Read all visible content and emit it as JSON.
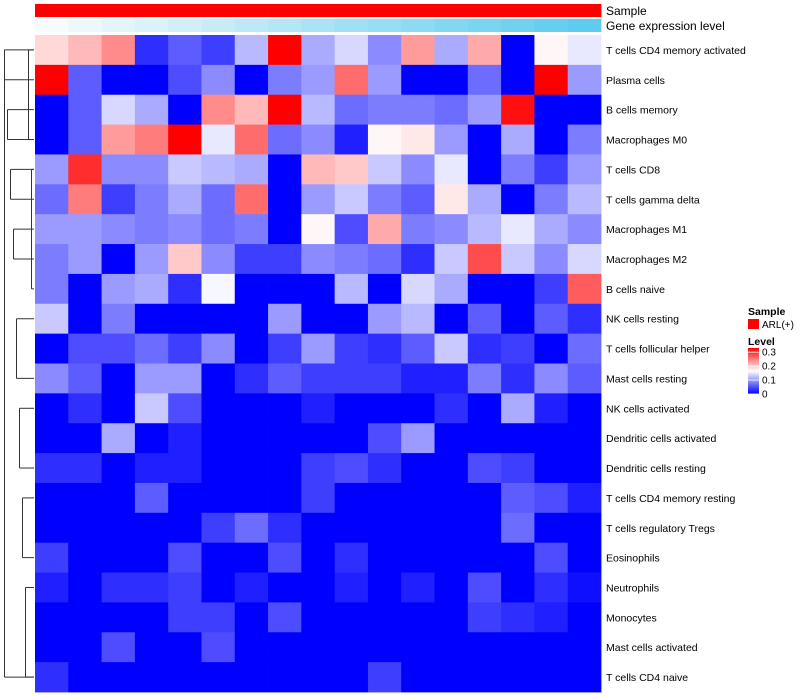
{
  "chart_data": {
    "type": "heatmap",
    "rows": [
      "T cells CD4 memory activated",
      "Plasma cells",
      "B cells memory",
      "Macrophages M0",
      "T cells CD8",
      "T cells gamma delta",
      "Macrophages M1",
      "Macrophages M2",
      "B cells naive",
      "NK cells resting",
      "T cells follicular helper",
      "Mast cells resting",
      "NK cells activated",
      "Dendritic cells activated",
      "Dendritic cells resting",
      "T cells CD4 memory resting",
      "T cells regulatory  Tregs",
      "Eosinophils",
      "Neutrophils",
      "Monocytes",
      "Mast cells activated",
      "T cells CD4 naive"
    ],
    "values": [
      [
        0.19,
        0.21,
        0.24,
        0.03,
        0.06,
        0.04,
        0.12,
        0.33,
        0.11,
        0.14,
        0.09,
        0.23,
        0.11,
        0.22,
        0.0,
        0.17,
        0.15
      ],
      [
        0.33,
        0.06,
        0.0,
        0.0,
        0.05,
        0.09,
        0.0,
        0.08,
        0.1,
        0.26,
        0.1,
        0.0,
        0.0,
        0.07,
        0.0,
        0.33,
        0.1
      ],
      [
        0.0,
        0.06,
        0.14,
        0.11,
        0.0,
        0.24,
        0.21,
        0.33,
        0.12,
        0.07,
        0.08,
        0.08,
        0.07,
        0.1,
        0.32,
        0.0,
        0.0
      ],
      [
        0.0,
        0.06,
        0.23,
        0.25,
        0.33,
        0.15,
        0.26,
        0.07,
        0.09,
        0.02,
        0.17,
        0.18,
        0.1,
        0.0,
        0.11,
        0.0,
        0.08
      ],
      [
        0.1,
        0.3,
        0.09,
        0.09,
        0.13,
        0.12,
        0.11,
        0.0,
        0.21,
        0.2,
        0.13,
        0.09,
        0.15,
        0.0,
        0.08,
        0.04,
        0.1
      ],
      [
        0.07,
        0.25,
        0.04,
        0.08,
        0.11,
        0.07,
        0.26,
        0.0,
        0.1,
        0.13,
        0.08,
        0.06,
        0.18,
        0.11,
        0.0,
        0.08,
        0.12
      ],
      [
        0.1,
        0.1,
        0.09,
        0.08,
        0.09,
        0.07,
        0.08,
        0.0,
        0.17,
        0.05,
        0.22,
        0.08,
        0.09,
        0.12,
        0.15,
        0.11,
        0.09
      ],
      [
        0.08,
        0.1,
        0.0,
        0.1,
        0.2,
        0.09,
        0.04,
        0.04,
        0.09,
        0.08,
        0.07,
        0.03,
        0.13,
        0.28,
        0.13,
        0.09,
        0.14
      ],
      [
        0.08,
        0.0,
        0.1,
        0.11,
        0.03,
        0.16,
        0.0,
        0.0,
        0.0,
        0.12,
        0.0,
        0.14,
        0.11,
        0.0,
        0.0,
        0.04,
        0.27
      ],
      [
        0.13,
        0.0,
        0.08,
        0.0,
        0.0,
        0.0,
        0.0,
        0.1,
        0.0,
        0.0,
        0.1,
        0.12,
        0.0,
        0.06,
        0.0,
        0.06,
        0.03
      ],
      [
        0.0,
        0.05,
        0.05,
        0.07,
        0.04,
        0.09,
        0.0,
        0.04,
        0.1,
        0.04,
        0.03,
        0.06,
        0.13,
        0.03,
        0.04,
        0.0,
        0.07
      ],
      [
        0.09,
        0.06,
        0.0,
        0.1,
        0.1,
        0.0,
        0.03,
        0.06,
        0.04,
        0.04,
        0.04,
        0.02,
        0.02,
        0.08,
        0.03,
        0.09,
        0.06
      ],
      [
        0.0,
        0.03,
        0.0,
        0.13,
        0.05,
        0.0,
        0.0,
        0.0,
        0.02,
        0.0,
        0.0,
        0.0,
        0.03,
        0.0,
        0.11,
        0.02,
        0.0
      ],
      [
        0.0,
        0.0,
        0.11,
        0.0,
        0.02,
        0.0,
        0.0,
        0.0,
        0.0,
        0.0,
        0.05,
        0.1,
        0.0,
        0.0,
        0.0,
        0.0,
        0.0
      ],
      [
        0.03,
        0.03,
        0.0,
        0.02,
        0.02,
        0.0,
        0.0,
        0.0,
        0.04,
        0.05,
        0.03,
        0.0,
        0.0,
        0.05,
        0.04,
        0.0,
        0.0
      ],
      [
        0.0,
        0.0,
        0.0,
        0.06,
        0.0,
        0.0,
        0.0,
        0.0,
        0.04,
        0.0,
        0.0,
        0.0,
        0.0,
        0.0,
        0.06,
        0.05,
        0.02
      ],
      [
        0.0,
        0.0,
        0.0,
        0.0,
        0.0,
        0.04,
        0.07,
        0.03,
        0.0,
        0.0,
        0.0,
        0.0,
        0.0,
        0.0,
        0.07,
        0.0,
        0.0
      ],
      [
        0.04,
        0.0,
        0.0,
        0.0,
        0.05,
        0.0,
        0.0,
        0.05,
        0.0,
        0.03,
        0.0,
        0.0,
        0.0,
        0.0,
        0.0,
        0.05,
        0.0
      ],
      [
        0.02,
        0.0,
        0.03,
        0.03,
        0.04,
        0.0,
        0.02,
        0.0,
        0.0,
        0.02,
        0.0,
        0.02,
        0.0,
        0.05,
        0.0,
        0.03,
        0.01
      ],
      [
        0.0,
        0.0,
        0.0,
        0.0,
        0.04,
        0.04,
        0.0,
        0.05,
        0.0,
        0.0,
        0.0,
        0.0,
        0.0,
        0.04,
        0.03,
        0.02,
        0.0
      ],
      [
        0.0,
        0.0,
        0.05,
        0.0,
        0.0,
        0.05,
        0.0,
        0.0,
        0.0,
        0.0,
        0.0,
        0.0,
        0.0,
        0.0,
        0.0,
        0.0,
        0.0
      ],
      [
        0.03,
        0.0,
        0.0,
        0.0,
        0.0,
        0.0,
        0.0,
        0.0,
        0.0,
        0.0,
        0.04,
        0.0,
        0.0,
        0.0,
        0.0,
        0.0,
        0.0
      ]
    ],
    "annotations": [
      {
        "label": "Sample",
        "colors": [
          "#ff0000",
          "#ff0000",
          "#ff0000",
          "#ff0000",
          "#ff0000",
          "#ff0000",
          "#ff0000",
          "#ff0000",
          "#ff0000",
          "#ff0000",
          "#ff0000",
          "#ff0000",
          "#ff0000",
          "#ff0000",
          "#ff0000",
          "#ff0000",
          "#ff0000"
        ]
      },
      {
        "label": "Gene expression level",
        "colors": [
          "#f6fbfd",
          "#edf8fc",
          "#e3f5fb",
          "#daf2fa",
          "#d0eff9",
          "#c7ecf8",
          "#bde9f7",
          "#b4e6f6",
          "#aae3f5",
          "#a1e0f4",
          "#97ddf3",
          "#8edaf2",
          "#84d7f1",
          "#7bd4f0",
          "#71d1ef",
          "#68cef0",
          "#5ecbef"
        ]
      }
    ],
    "legend": {
      "sample_title": "Sample",
      "sample_item": "ARL(+)",
      "sample_color": "#ff0000",
      "level_title": "Level",
      "ticks": [
        "0.3",
        "0.2",
        "0.1",
        "0"
      ],
      "tick_values": [
        0.3,
        0.2,
        0.1,
        0
      ],
      "scale_min": 0,
      "scale_max": 0.33,
      "colors": [
        "#0000ff",
        "#ffffff",
        "#ff0000"
      ]
    },
    "dendrogram": "rows"
  }
}
